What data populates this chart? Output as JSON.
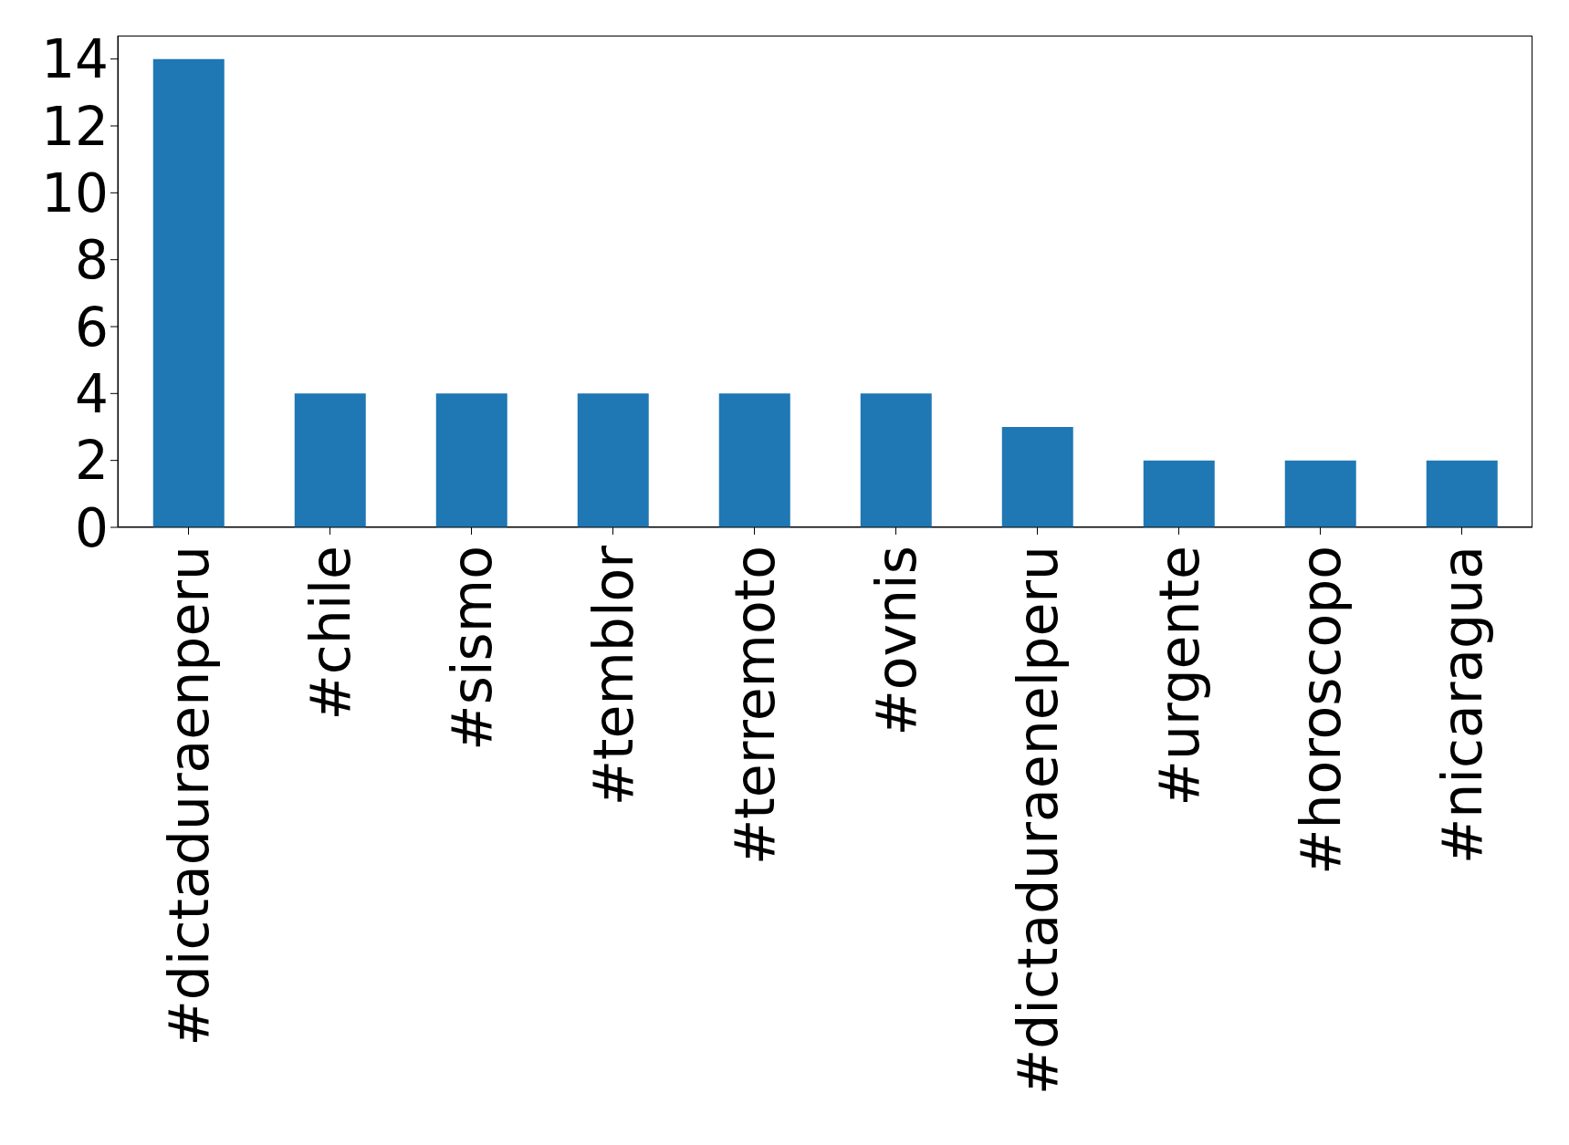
{
  "chart_data": {
    "type": "bar",
    "categories": [
      "#dictaduraenperu",
      "#chile",
      "#sismo",
      "#temblor",
      "#terremoto",
      "#ovnis",
      "#dictaduraenelperu",
      "#urgente",
      "#horoscopo",
      "#nicaragua"
    ],
    "values": [
      14,
      4,
      4,
      4,
      4,
      4,
      3,
      2,
      2,
      2
    ],
    "color": "#1f77b4",
    "ylim": [
      0,
      14.7
    ],
    "yticks": [
      0,
      2,
      4,
      6,
      8,
      10,
      12,
      14
    ],
    "grid": false
  }
}
